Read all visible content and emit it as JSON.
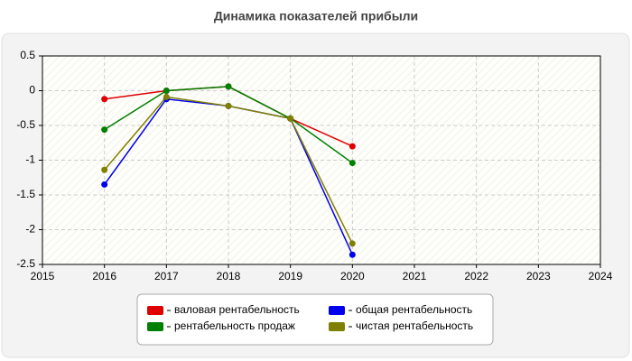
{
  "chart_data": {
    "type": "line",
    "title": "Динамика показателей прибыли",
    "x": [
      2016,
      2017,
      2018,
      2019,
      2020
    ],
    "series": [
      {
        "name": "валовая рентабельность",
        "color": "#e00000",
        "values": [
          -0.12,
          0,
          0.06,
          -0.4,
          -0.8
        ]
      },
      {
        "name": "общая рентабельность",
        "color": "#0000ee",
        "values": [
          -1.35,
          -0.12,
          -0.22,
          -0.4,
          -2.36
        ]
      },
      {
        "name": "рентабельность продаж",
        "color": "#008000",
        "values": [
          -0.56,
          0,
          0.06,
          -0.4,
          -1.04
        ]
      },
      {
        "name": "чистая рентабельность",
        "color": "#808000",
        "values": [
          -1.14,
          -0.09,
          -0.22,
          -0.4,
          -2.2
        ]
      }
    ],
    "xlim": [
      2015,
      2024
    ],
    "xticks": [
      2015,
      2016,
      2017,
      2018,
      2019,
      2020,
      2021,
      2022,
      2023,
      2024
    ],
    "ylim": [
      -2.5,
      0.5
    ],
    "yticks": [
      0.5,
      0,
      -0.5,
      -1,
      -1.5,
      -2,
      -2.5
    ],
    "grid": true,
    "legend": "bottom"
  }
}
